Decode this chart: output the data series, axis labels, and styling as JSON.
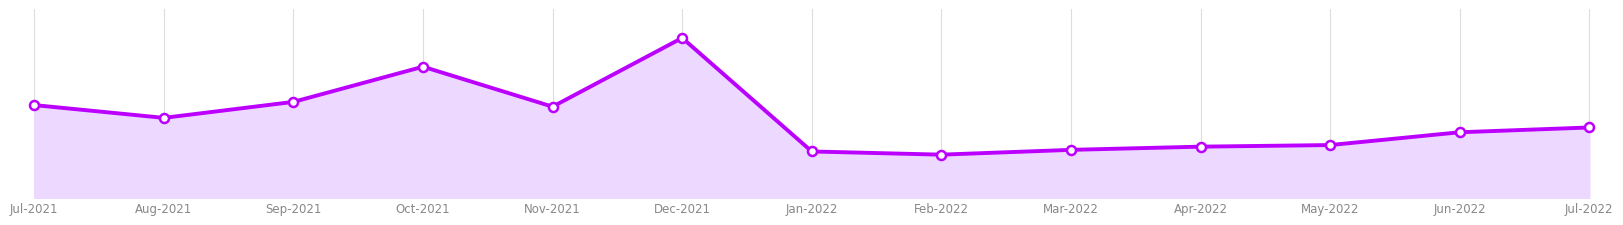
{
  "labels": [
    "Jul-2021",
    "Aug-2021",
    "Sep-2021",
    "Oct-2021",
    "Nov-2021",
    "Dec-2021",
    "Jan-2022",
    "Feb-2022",
    "Mar-2022",
    "Apr-2022",
    "May-2022",
    "Jun-2022",
    "Jul-2022"
  ],
  "values": [
    0.58,
    0.5,
    0.6,
    0.82,
    0.57,
    1.0,
    0.29,
    0.27,
    0.3,
    0.32,
    0.33,
    0.41,
    0.44
  ],
  "line_color": "#BB00FF",
  "fill_color": "#EDD9FF",
  "marker_color": "#BB00FF",
  "marker_face": "#FFFFFF",
  "background_color": "#FFFFFF",
  "grid_color": "#DDDDDD",
  "tick_fontsize": 8.5,
  "line_width": 2.8,
  "marker_size": 6.5,
  "marker_edge_width": 1.8
}
